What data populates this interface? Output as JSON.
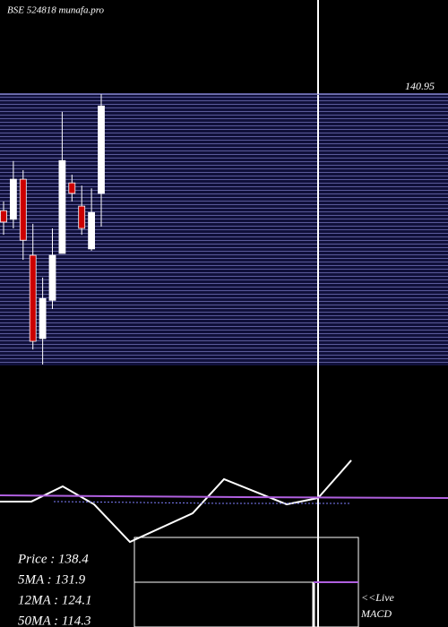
{
  "chart_data": [
    {
      "type": "candlestick",
      "title": "BSE 524818 munafa.pro",
      "open": [
        115.4,
        113.5,
        122.3,
        105.6,
        87.3,
        95.7,
        106.0,
        121.5,
        116.4,
        107.0,
        119.2
      ],
      "high": [
        117.4,
        126.3,
        124.3,
        112.5,
        100.7,
        111.5,
        137.1,
        123.3,
        120.9,
        120.3,
        141.0
      ],
      "low": [
        110.1,
        111.5,
        104.6,
        84.9,
        81.6,
        93.8,
        106.0,
        117.4,
        110.1,
        106.6,
        111.9
      ],
      "close": [
        112.9,
        122.3,
        108.9,
        86.7,
        96.1,
        105.6,
        126.4,
        119.2,
        111.5,
        115.0,
        138.4
      ],
      "up_color": "#ffffff",
      "down_color": "#cc0000",
      "ylim": [
        81,
        142
      ],
      "yticks": [
        140.95
      ],
      "info": [
        "Price   : 138.4",
        "5MA : 131.9",
        "12MA : 124.1",
        "50MA : 114.3"
      ]
    },
    {
      "type": "line",
      "xlim": [
        0,
        500
      ],
      "ylim": [
        0,
        100
      ],
      "annotations": [
        "<<Live",
        "MACD"
      ],
      "series": [
        {
          "color": "#ffffff",
          "style": "solid",
          "x": [
            0,
            35,
            70,
            105,
            145,
            215,
            250,
            320,
            355,
            392
          ],
          "values": [
            45.5,
            45.5,
            60.9,
            42.7,
            4.5,
            33.6,
            68.2,
            42.7,
            49.1,
            87.3
          ]
        },
        {
          "color": "#b060e0",
          "style": "solid",
          "x": [
            0,
            125,
            270,
            500
          ],
          "values": [
            51.8,
            50.9,
            50.0,
            49.1
          ]
        },
        {
          "color": "#8080ff",
          "style": "dotted",
          "x": [
            60,
            250,
            390
          ],
          "values": [
            45.5,
            43.6,
            43.6
          ]
        }
      ]
    }
  ]
}
